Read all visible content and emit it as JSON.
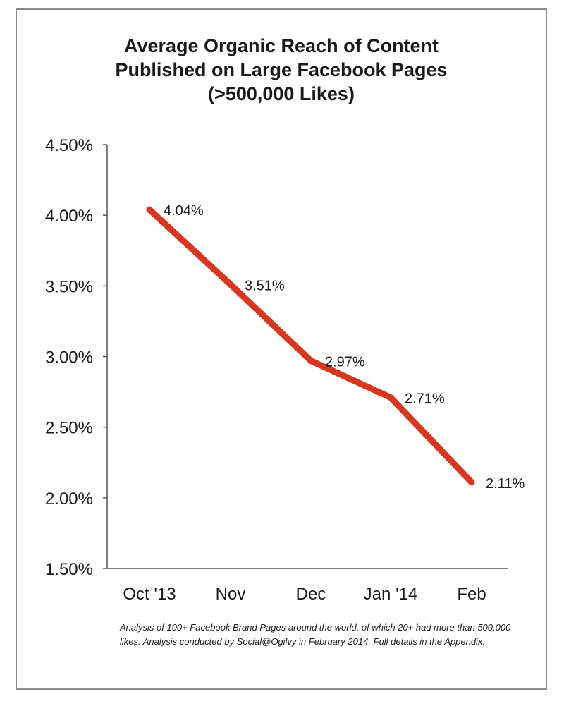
{
  "chart_data": {
    "type": "line",
    "title_lines": [
      "Average Organic Reach of Content",
      "Published on Large Facebook Pages",
      "(>500,000 Likes)"
    ],
    "categories": [
      "Oct '13",
      "Nov",
      "Dec",
      "Jan '14",
      "Feb"
    ],
    "series": [
      {
        "values": [
          4.04,
          3.51,
          2.97,
          2.71,
          2.11
        ],
        "labels": [
          "4.04%",
          "3.51%",
          "2.97%",
          "2.71%",
          "2.11%"
        ],
        "color": "#d8361e"
      }
    ],
    "ylim": [
      1.5,
      4.5
    ],
    "y_ticks": [
      1.5,
      2.0,
      2.5,
      3.0,
      3.5,
      4.0,
      4.5
    ],
    "y_tick_labels": [
      "1.50%",
      "2.00%",
      "2.50%",
      "3.00%",
      "3.50%",
      "4.00%",
      "4.50%"
    ],
    "grid": false,
    "xlabel": "",
    "ylabel": ""
  },
  "footnote": "Analysis of 100+ Facebook Brand Pages around the world, of which 20+ had more than 500,000 likes. Analysis conducted by Social@Ogilvy in February 2014. Full details in the Appendix."
}
